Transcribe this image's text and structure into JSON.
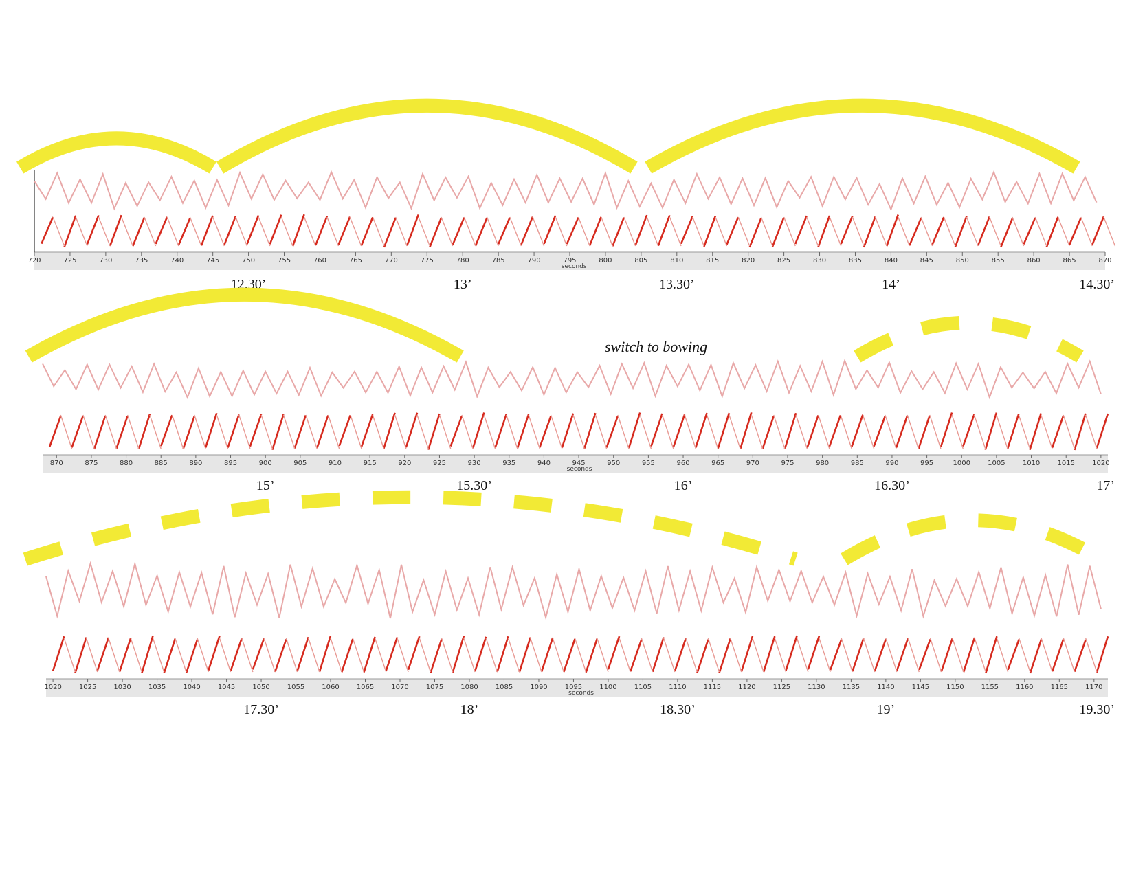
{
  "colors": {
    "upper_trace": "#e8a8a8",
    "lower_trace": "#d62a1e",
    "lower_trace_light": "#e89a94",
    "arc": "#f2ea35",
    "axis_band": "#e6e6e6"
  },
  "chart_data": [
    {
      "type": "line",
      "id": "row1",
      "x_range": [
        720,
        870
      ],
      "xlabel": "seconds",
      "tick_step": 5,
      "tick_labels": [
        "720",
        "725",
        "730",
        "735",
        "740",
        "745",
        "750",
        "755",
        "760",
        "765",
        "770",
        "775",
        "780",
        "785",
        "790",
        "795",
        "800",
        "805",
        "810",
        "815",
        "820",
        "825",
        "830",
        "835",
        "840",
        "845",
        "850",
        "855",
        "860",
        "865",
        "870"
      ],
      "time_labels": [
        {
          "text": "12.30’",
          "x": 750
        },
        {
          "text": "13’",
          "x": 780
        },
        {
          "text": "13.30’",
          "x": 810
        },
        {
          "text": "14’",
          "x": 840
        },
        {
          "text": "14.30’",
          "x": 870
        }
      ],
      "arcs": [
        {
          "from": 718,
          "to": 745,
          "style": "solid"
        },
        {
          "from": 746,
          "to": 804,
          "style": "solid"
        },
        {
          "from": 806,
          "to": 866,
          "style": "solid"
        }
      ]
    },
    {
      "type": "line",
      "id": "row2",
      "x_range": [
        868,
        1021
      ],
      "xlabel": "seconds",
      "tick_step": 5,
      "tick_labels": [
        "870",
        "875",
        "880",
        "885",
        "890",
        "895",
        "900",
        "905",
        "910",
        "915",
        "920",
        "925",
        "930",
        "935",
        "940",
        "945",
        "950",
        "955",
        "960",
        "965",
        "970",
        "975",
        "980",
        "985",
        "990",
        "995",
        "1000",
        "1005",
        "1010",
        "1015",
        "1020"
      ],
      "time_labels": [
        {
          "text": "15’",
          "x": 900
        },
        {
          "text": "15.30’",
          "x": 930
        },
        {
          "text": "16’",
          "x": 960
        },
        {
          "text": "16.30’",
          "x": 990
        },
        {
          "text": "17’",
          "x": 1020
        }
      ],
      "annotation": "switch to bowing",
      "arcs": [
        {
          "from": 866,
          "to": 928,
          "style": "solid"
        },
        {
          "from": 985,
          "to": 1017,
          "style": "dashed"
        }
      ]
    },
    {
      "type": "line",
      "id": "row3",
      "x_range": [
        1019,
        1172
      ],
      "xlabel": "seconds",
      "tick_step": 5,
      "tick_labels": [
        "1020",
        "1025",
        "1030",
        "1035",
        "1040",
        "1045",
        "1050",
        "1055",
        "1060",
        "1065",
        "1070",
        "1075",
        "1080",
        "1085",
        "1090",
        "1095",
        "1100",
        "1105",
        "1110",
        "1115",
        "1120",
        "1125",
        "1130",
        "1135",
        "1140",
        "1145",
        "1150",
        "1155",
        "1160",
        "1165",
        "1170"
      ],
      "time_labels": [
        {
          "text": "17.30’",
          "x": 1050
        },
        {
          "text": "18’",
          "x": 1080
        },
        {
          "text": "18.30’",
          "x": 1110
        },
        {
          "text": "19’",
          "x": 1140
        },
        {
          "text": "19.30’",
          "x": 1170
        }
      ],
      "arcs": [
        {
          "from": 1016,
          "to": 1127,
          "style": "dashed"
        },
        {
          "from": 1134,
          "to": 1171,
          "style": "dashed"
        }
      ]
    }
  ]
}
